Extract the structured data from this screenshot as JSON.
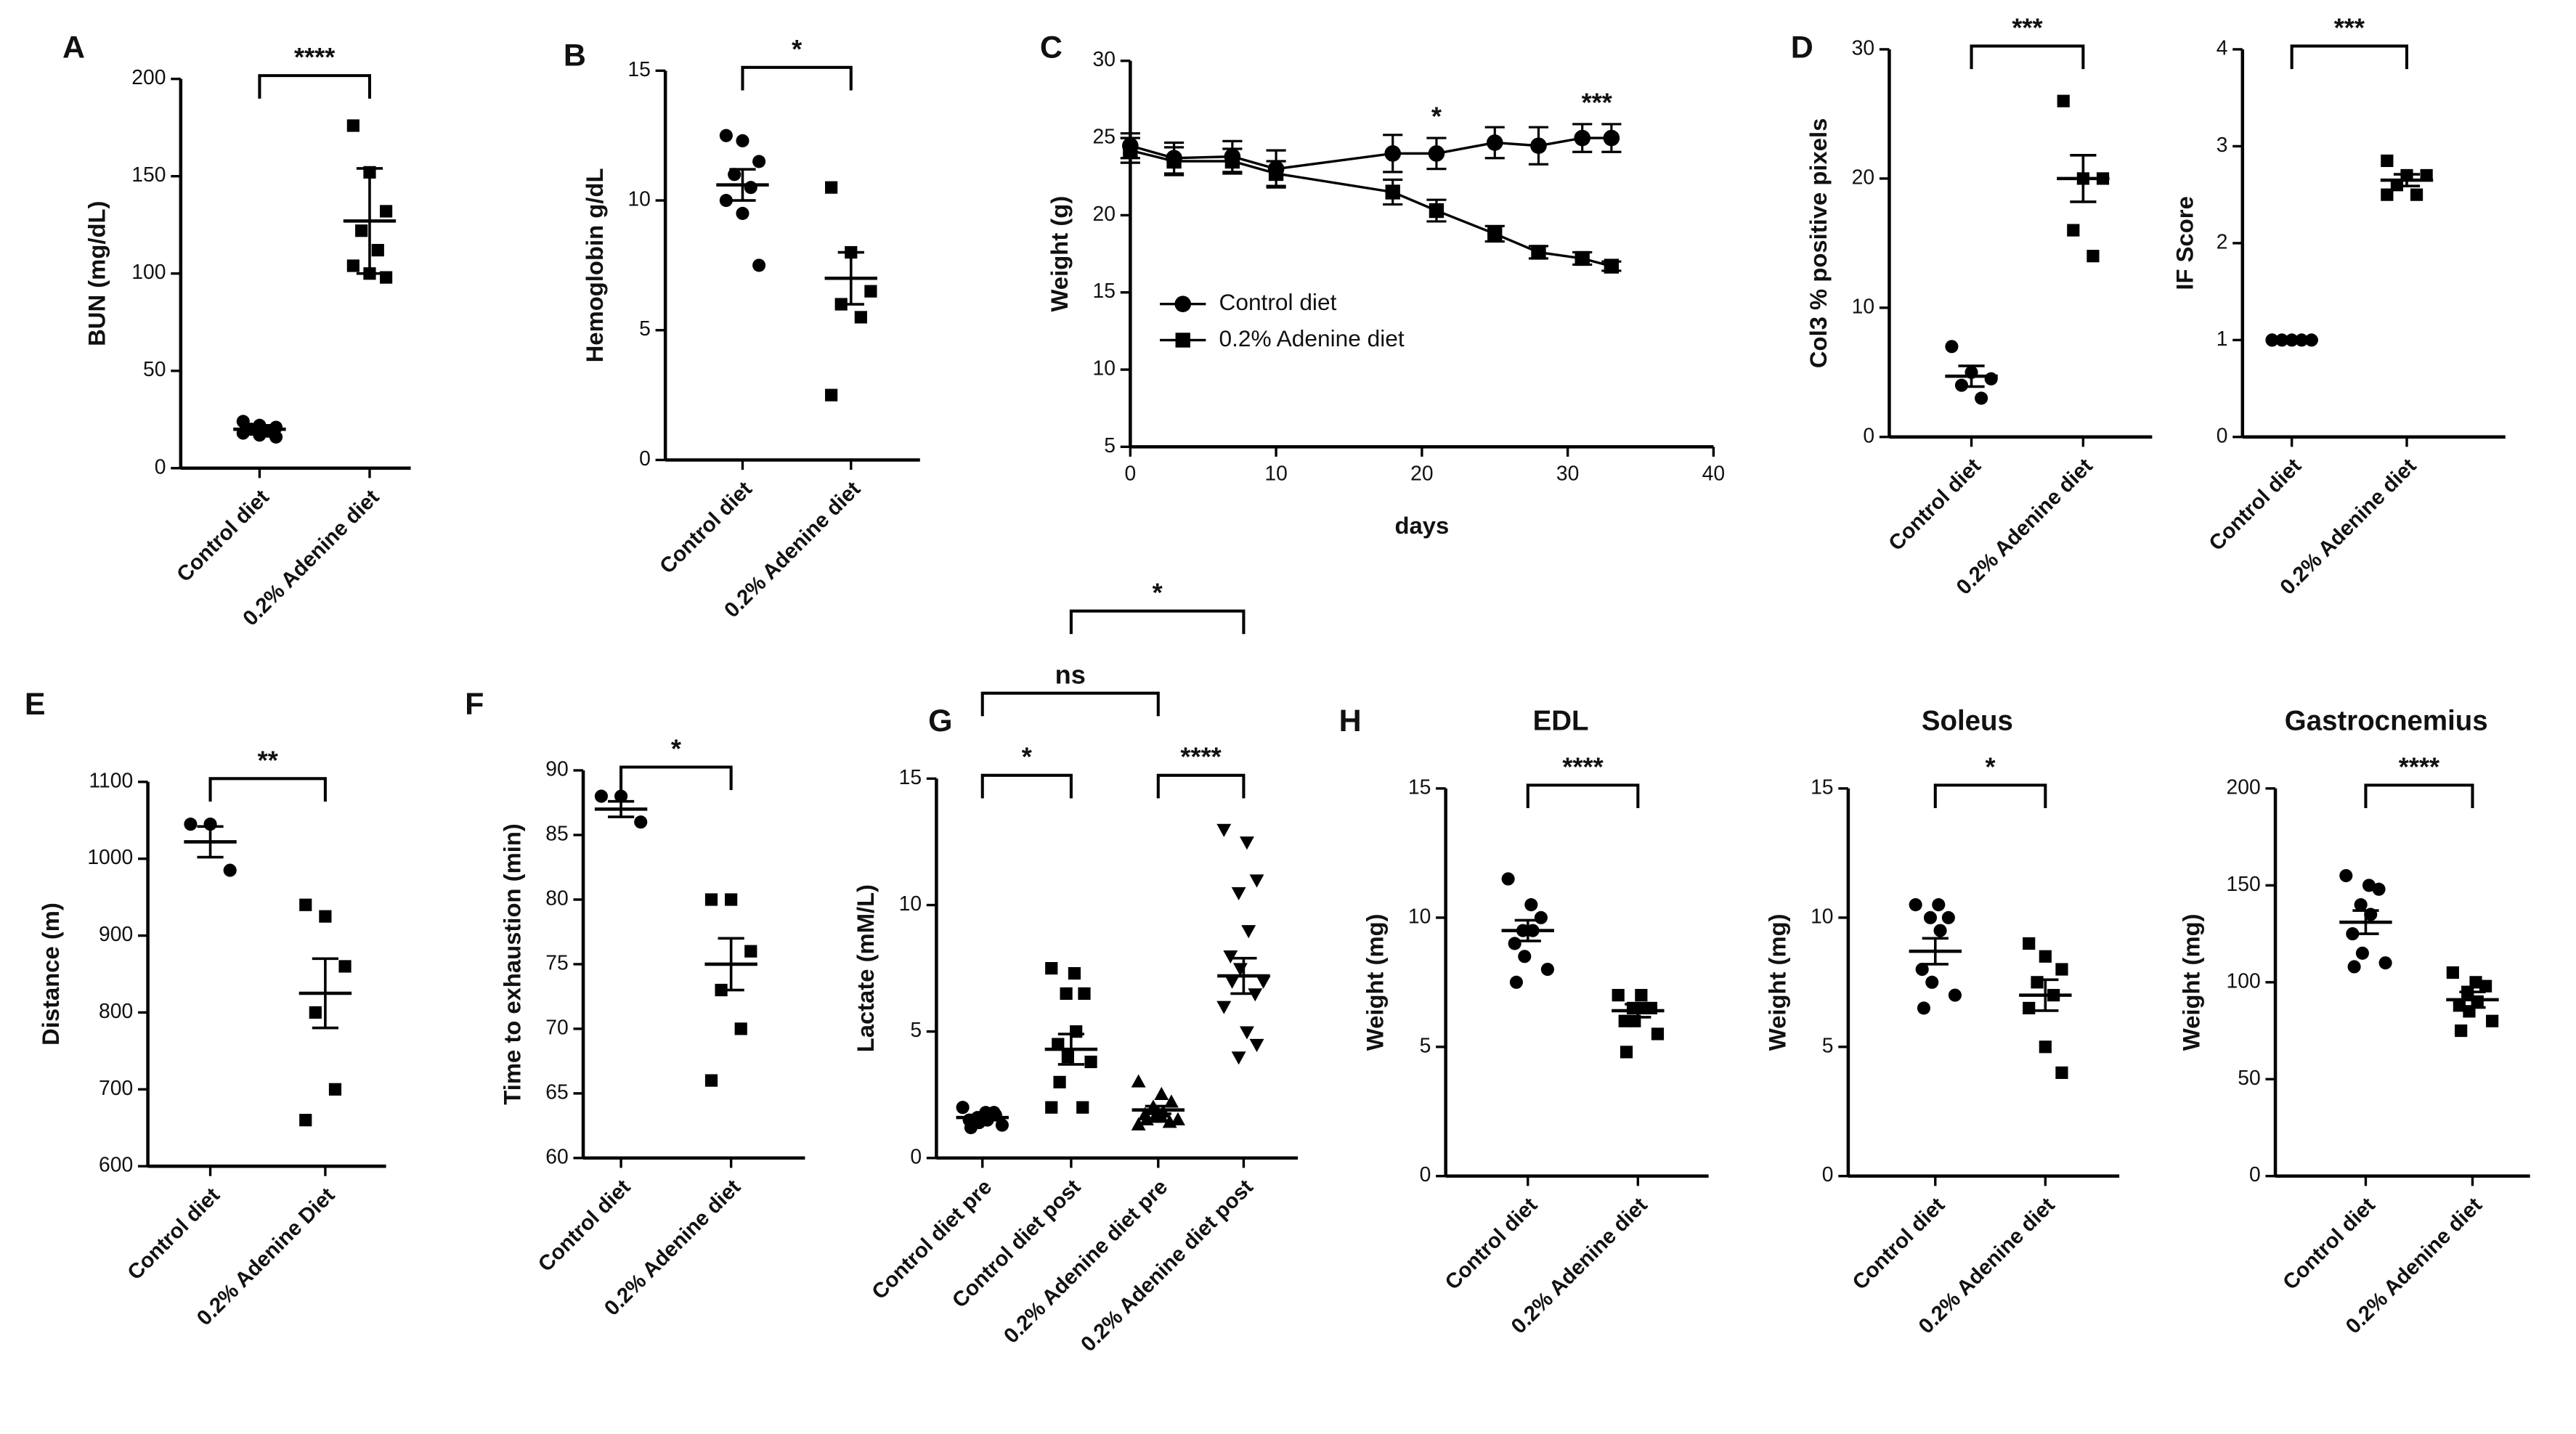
{
  "chart_data": [
    {
      "panel": "A",
      "type": "dot",
      "ylabel": "BUN (mg/dL)",
      "categories": [
        "Control diet",
        "0.2% Adenine diet"
      ],
      "markers": [
        "circle",
        "square"
      ],
      "color": "#000000",
      "values": [
        [
          24,
          22,
          21,
          20,
          19,
          18,
          17,
          16
        ],
        [
          176,
          152,
          132,
          122,
          112,
          104,
          100,
          98
        ]
      ],
      "means": [
        20,
        127
      ],
      "errors": [
        2,
        27
      ],
      "ylim": [
        0,
        200
      ],
      "yticks": [
        0,
        50,
        100,
        150,
        200
      ],
      "brackets": [
        {
          "from": 0,
          "to": 1,
          "label": "****"
        }
      ]
    },
    {
      "panel": "B",
      "type": "dot",
      "ylabel": "Hemoglobin g/dL",
      "categories": [
        "Control diet",
        "0.2% Adenine diet"
      ],
      "markers": [
        "circle",
        "square"
      ],
      "color": "#000000",
      "values": [
        [
          12.5,
          12.3,
          11.5,
          11,
          10.5,
          10,
          9.5,
          7.5
        ],
        [
          10.5,
          8,
          6.5,
          6,
          5.5,
          2.5
        ]
      ],
      "means": [
        10.6,
        7
      ],
      "errors": [
        0.6,
        1
      ],
      "ylim": [
        0,
        15
      ],
      "yticks": [
        0,
        5,
        10,
        15
      ],
      "brackets": [
        {
          "from": 0,
          "to": 1,
          "label": "*"
        }
      ]
    },
    {
      "panel": "C",
      "type": "line",
      "xlabel": "days",
      "ylabel": "Weight (g)",
      "color": "#000000",
      "legend": "left",
      "x": [
        0,
        3,
        7,
        10,
        18,
        21,
        25,
        28,
        31,
        33
      ],
      "series": [
        {
          "name": "Control diet",
          "marker": "circle",
          "values": [
            24.5,
            23.7,
            23.8,
            23,
            24,
            24,
            24.7,
            24.5,
            25,
            25
          ],
          "errors": [
            0.8,
            1,
            1,
            1.2,
            1.2,
            1,
            1,
            1.2,
            0.9,
            0.9
          ]
        },
        {
          "name": "0.2% Adenine diet",
          "marker": "square",
          "values": [
            24.2,
            23.5,
            23.5,
            22.7,
            21.5,
            20.3,
            18.8,
            17.6,
            17.2,
            16.7
          ],
          "errors": [
            0.8,
            0.9,
            0.8,
            0.8,
            0.8,
            0.7,
            0.5,
            0.4,
            0.4,
            0.3
          ]
        }
      ],
      "xlim": [
        0,
        40
      ],
      "xticks": [
        0,
        10,
        20,
        30,
        40
      ],
      "ylim": [
        5,
        30
      ],
      "yticks": [
        5,
        10,
        15,
        20,
        25,
        30
      ],
      "annotations": [
        {
          "text": "*",
          "x": 21
        },
        {
          "text": "***",
          "x": 32
        }
      ]
    },
    {
      "panel": "D",
      "type": "dot",
      "ylabel": "Col3 % positive pixels",
      "categories": [
        "Control diet",
        "0.2% Adenine diet"
      ],
      "markers": [
        "circle",
        "square"
      ],
      "color": "#000000",
      "values": [
        [
          7,
          5,
          4.5,
          4,
          3
        ],
        [
          26,
          20,
          20,
          16,
          14
        ]
      ],
      "means": [
        4.7,
        20
      ],
      "errors": [
        0.8,
        1.8
      ],
      "ylim": [
        0,
        30
      ],
      "yticks": [
        0,
        10,
        20,
        30
      ],
      "brackets": [
        {
          "from": 0,
          "to": 1,
          "label": "***"
        }
      ]
    },
    {
      "type": "dot",
      "ylabel": "IF Score",
      "categories": [
        "Control diet",
        "0.2% Adenine diet"
      ],
      "markers": [
        "circle",
        "square"
      ],
      "color": "#000000",
      "values": [
        [
          1,
          1,
          1,
          1,
          1,
          1
        ],
        [
          2.85,
          2.7,
          2.7,
          2.6,
          2.5,
          2.5
        ]
      ],
      "means": [
        1,
        2.65
      ],
      "errors": [
        0,
        0.06
      ],
      "ylim": [
        0,
        4
      ],
      "yticks": [
        0,
        1,
        2,
        3,
        4
      ],
      "brackets": [
        {
          "from": 0,
          "to": 1,
          "label": "***"
        }
      ]
    },
    {
      "panel": "E",
      "type": "dot",
      "ylabel": "Distance (m)",
      "categories": [
        "Control diet",
        "0.2% Adenine Diet"
      ],
      "markers": [
        "circle",
        "square"
      ],
      "color": "#000000",
      "values": [
        [
          1045,
          1045,
          985
        ],
        [
          940,
          925,
          860,
          800,
          700,
          660
        ]
      ],
      "means": [
        1022,
        825
      ],
      "errors": [
        20,
        45
      ],
      "ylim": [
        600,
        1100
      ],
      "yticks": [
        600,
        700,
        800,
        900,
        1000,
        1100
      ],
      "brackets": [
        {
          "from": 0,
          "to": 1,
          "label": "**"
        }
      ]
    },
    {
      "panel": "F",
      "type": "dot",
      "ylabel": "Time to exhaustion (min)",
      "categories": [
        "Control diet",
        "0.2% Adenine diet"
      ],
      "markers": [
        "circle",
        "square"
      ],
      "color": "#000000",
      "values": [
        [
          88,
          88,
          86
        ],
        [
          80,
          80,
          76,
          73,
          70,
          66
        ]
      ],
      "means": [
        87,
        75
      ],
      "errors": [
        0.6,
        2
      ],
      "ylim": [
        60,
        90
      ],
      "yticks": [
        60,
        65,
        70,
        75,
        80,
        85,
        90
      ],
      "brackets": [
        {
          "from": 0,
          "to": 1,
          "label": "*"
        }
      ]
    },
    {
      "panel": "G",
      "type": "dot",
      "ylabel": "Lactate (mM/L)",
      "categories": [
        "Control diet pre",
        "Control diet post",
        "0.2% Adenine diet pre",
        "0.2% Adenine diet post"
      ],
      "markers": [
        "circle",
        "square",
        "triangle",
        "triangle-down"
      ],
      "color": "#000000",
      "values": [
        [
          2,
          1.8,
          1.7,
          1.6,
          1.5,
          1.5,
          1.4,
          1.3,
          1.2,
          1.8
        ],
        [
          7.5,
          7.3,
          6.5,
          6.5,
          5,
          4.5,
          4,
          3.8,
          3,
          2,
          2
        ],
        [
          3,
          2.5,
          2.2,
          2,
          1.8,
          1.7,
          1.6,
          1.5,
          1.5,
          1.4,
          1.3,
          1.6
        ],
        [
          13,
          12.5,
          11,
          10.5,
          9,
          8,
          7.5,
          7,
          7,
          6.5,
          6,
          5,
          4.5,
          4
        ]
      ],
      "means": [
        1.6,
        4.3,
        1.9,
        7.2
      ],
      "errors": [
        0.1,
        0.6,
        0.15,
        0.7
      ],
      "ylim": [
        0,
        15
      ],
      "yticks": [
        0,
        5,
        10,
        15
      ],
      "brackets": [
        {
          "from": 0,
          "to": 1,
          "label": "*"
        },
        {
          "from": 2,
          "to": 3,
          "label": "****"
        },
        {
          "from": 0,
          "to": 2,
          "label": "ns"
        },
        {
          "from": 1,
          "to": 3,
          "label": "*"
        }
      ]
    },
    {
      "panel": "H",
      "type": "dot",
      "title": "EDL",
      "ylabel": "Weight (mg)",
      "categories": [
        "Control diet",
        "0.2% Adenine diet"
      ],
      "markers": [
        "circle",
        "square"
      ],
      "color": "#000000",
      "values": [
        [
          11.5,
          10.5,
          10,
          9.5,
          9.5,
          9,
          8.5,
          8,
          7.5
        ],
        [
          7,
          7,
          6.5,
          6.5,
          6.5,
          6,
          6,
          5.5,
          4.8
        ]
      ],
      "means": [
        9.5,
        6.4
      ],
      "errors": [
        0.4,
        0.25
      ],
      "ylim": [
        0,
        15
      ],
      "yticks": [
        0,
        5,
        10,
        15
      ],
      "brackets": [
        {
          "from": 0,
          "to": 1,
          "label": "****"
        }
      ]
    },
    {
      "type": "dot",
      "title": "Soleus",
      "ylabel": "Weight (mg)",
      "categories": [
        "Control diet",
        "0.2% Adenine diet"
      ],
      "markers": [
        "circle",
        "square"
      ],
      "color": "#000000",
      "values": [
        [
          10.5,
          10.5,
          10,
          10,
          9.5,
          8,
          7.5,
          7,
          6.5
        ],
        [
          9,
          8.5,
          8,
          7.5,
          7,
          6.5,
          5,
          4
        ]
      ],
      "means": [
        8.7,
        7
      ],
      "errors": [
        0.5,
        0.6
      ],
      "ylim": [
        0,
        15
      ],
      "yticks": [
        0,
        5,
        10,
        15
      ],
      "brackets": [
        {
          "from": 0,
          "to": 1,
          "label": "*"
        }
      ]
    },
    {
      "type": "dot",
      "title": "Gastrocnemius",
      "ylabel": "Weight (mg)",
      "categories": [
        "Control diet",
        "0.2% Adenine diet"
      ],
      "markers": [
        "circle",
        "square"
      ],
      "color": "#000000",
      "values": [
        [
          155,
          150,
          148,
          140,
          135,
          125,
          115,
          110,
          108
        ],
        [
          105,
          100,
          98,
          95,
          90,
          88,
          85,
          80,
          75
        ]
      ],
      "means": [
        131,
        91
      ],
      "errors": [
        6,
        4
      ],
      "ylim": [
        0,
        200
      ],
      "yticks": [
        0,
        50,
        100,
        150,
        200
      ],
      "brackets": [
        {
          "from": 0,
          "to": 1,
          "label": "****"
        }
      ]
    }
  ]
}
